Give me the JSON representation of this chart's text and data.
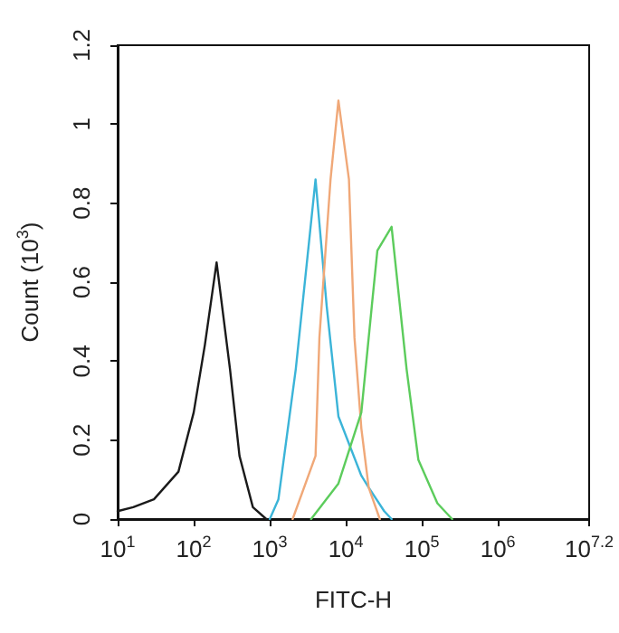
{
  "chart_data": {
    "type": "line",
    "xlabel": "FITC-H",
    "ylabel": "Count (10$^{3}$)",
    "log": "x",
    "grid": false,
    "marker": "none",
    "line_style": "solid",
    "xlim": [
      10,
      15848931.92
    ],
    "xticks": [
      {
        "value": 10,
        "label": "10$^{1}$"
      },
      {
        "value": 100,
        "label": "10$^{2}$"
      },
      {
        "value": 1000,
        "label": "10$^{3}$"
      },
      {
        "value": 10000,
        "label": "10$^{4}$"
      },
      {
        "value": 100000,
        "label": "10$^{5}$"
      },
      {
        "value": 1000000,
        "label": "10$^{6}$"
      },
      {
        "value": 15848931.92,
        "label": "10$^{7.2}$"
      }
    ],
    "ylim": [
      0,
      1.2
    ],
    "yticks": [
      0,
      0.2,
      0.4,
      0.6,
      0.8,
      {
        "value": 1,
        "label": "1"
      },
      1.2
    ],
    "series": [
      {
        "color": "#1a1a1a",
        "x": [
          10,
          16,
          30,
          63,
          100,
          140,
          200,
          300,
          400,
          600,
          900
        ],
        "values": [
          0.02,
          0.03,
          0.05,
          0.12,
          0.27,
          0.44,
          0.65,
          0.38,
          0.16,
          0.03,
          0
        ]
      },
      {
        "color": "#3bb4d8",
        "x": [
          1000,
          1300,
          2200,
          4000,
          5600,
          8000,
          16000,
          20000,
          32000,
          40000
        ],
        "values": [
          0,
          0.05,
          0.38,
          0.86,
          0.54,
          0.26,
          0.11,
          0.08,
          0.02,
          0
        ]
      },
      {
        "color": "#f0a878",
        "x": [
          2000,
          4000,
          4500,
          6300,
          8000,
          11000,
          13000,
          16000,
          20000,
          28000
        ],
        "values": [
          0,
          0.16,
          0.46,
          0.86,
          1.06,
          0.86,
          0.46,
          0.23,
          0.08,
          0
        ]
      },
      {
        "color": "#5ccc5c",
        "x": [
          3500,
          8000,
          16000,
          22000,
          26000,
          40000,
          63000,
          90000,
          160000,
          250000
        ],
        "values": [
          0,
          0.09,
          0.27,
          0.54,
          0.68,
          0.74,
          0.38,
          0.15,
          0.04,
          0
        ]
      }
    ]
  }
}
